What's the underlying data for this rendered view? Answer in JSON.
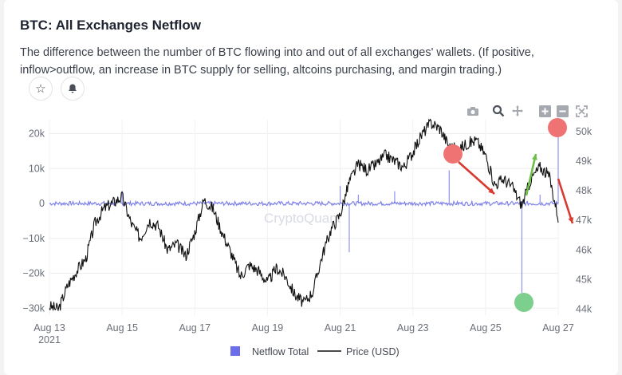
{
  "header": {
    "title": "BTC: All Exchanges Netflow",
    "description": "The difference between the number of BTC flowing into and out of all exchanges' wallets. (If positive, inflow>outflow, an increase in BTC supply for selling, altcoins purchasing, and margin trading.)"
  },
  "actions": {
    "favorite_icon": "star-icon",
    "alert_icon": "bell-icon"
  },
  "toolbar": [
    "camera-icon",
    "zoom-icon",
    "pan-icon",
    "zoom-in-icon",
    "zoom-out-icon",
    "autoscale-icon"
  ],
  "watermark": "CryptoQuant",
  "colors": {
    "netflow": "#6b6ee8",
    "price": "#111111",
    "up_arrow": "#6cbf46",
    "down_arrow": "#d93a2f",
    "red_marker": "#ef7373",
    "green_marker": "#7ccf8c"
  },
  "chart_data": {
    "type": "line",
    "title": "BTC: All Exchanges Netflow",
    "x_ticks": [
      "Aug 13",
      "Aug 15",
      "Aug 17",
      "Aug 19",
      "Aug 21",
      "Aug 23",
      "Aug 25",
      "Aug 27"
    ],
    "x_year_label": "2021",
    "y_left_ticks": [
      "20k",
      "10k",
      "0",
      "−10k",
      "−20k",
      "−30k"
    ],
    "y_left_values": [
      20000,
      10000,
      0,
      -10000,
      -20000,
      -30000
    ],
    "y_left_range": [
      -32000,
      24000
    ],
    "y_right_ticks": [
      "50k",
      "49k",
      "48k",
      "47k",
      "46k",
      "45k",
      "44k"
    ],
    "y_right_values": [
      50000,
      49000,
      48000,
      47000,
      46000,
      45000,
      44000
    ],
    "y_right_range": [
      43800,
      50400
    ],
    "legend": [
      "Netflow Total",
      "Price (USD)"
    ],
    "legend_position": "bottom",
    "grid": true,
    "series": [
      {
        "name": "Price (USD)",
        "axis": "right",
        "points": [
          [
            "Aug 13 00:00",
            44100
          ],
          [
            "Aug 13 06:00",
            44000
          ],
          [
            "Aug 13 12:00",
            44800
          ],
          [
            "Aug 13 18:00",
            45300
          ],
          [
            "Aug 14 00:00",
            45700
          ],
          [
            "Aug 14 06:00",
            46900
          ],
          [
            "Aug 14 12:00",
            47400
          ],
          [
            "Aug 14 18:00",
            47600
          ],
          [
            "Aug 15 00:00",
            47800
          ],
          [
            "Aug 15 06:00",
            46900
          ],
          [
            "Aug 15 12:00",
            46400
          ],
          [
            "Aug 15 18:00",
            47000
          ],
          [
            "Aug 16 00:00",
            46800
          ],
          [
            "Aug 16 06:00",
            46000
          ],
          [
            "Aug 16 12:00",
            46200
          ],
          [
            "Aug 16 18:00",
            45800
          ],
          [
            "Aug 17 00:00",
            46600
          ],
          [
            "Aug 17 06:00",
            47700
          ],
          [
            "Aug 17 12:00",
            47400
          ],
          [
            "Aug 17 18:00",
            46600
          ],
          [
            "Aug 18 00:00",
            45900
          ],
          [
            "Aug 18 06:00",
            45100
          ],
          [
            "Aug 18 12:00",
            45500
          ],
          [
            "Aug 18 18:00",
            45300
          ],
          [
            "Aug 19 00:00",
            44900
          ],
          [
            "Aug 19 06:00",
            45400
          ],
          [
            "Aug 19 12:00",
            45100
          ],
          [
            "Aug 19 18:00",
            44500
          ],
          [
            "Aug 20 00:00",
            44200
          ],
          [
            "Aug 20 06:00",
            44600
          ],
          [
            "Aug 20 12:00",
            45800
          ],
          [
            "Aug 20 18:00",
            46700
          ],
          [
            "Aug 21 00:00",
            47200
          ],
          [
            "Aug 21 06:00",
            48300
          ],
          [
            "Aug 21 12:00",
            48900
          ],
          [
            "Aug 21 18:00",
            48700
          ],
          [
            "Aug 22 00:00",
            48900
          ],
          [
            "Aug 22 06:00",
            49200
          ],
          [
            "Aug 22 12:00",
            49000
          ],
          [
            "Aug 22 18:00",
            48800
          ],
          [
            "Aug 23 00:00",
            49300
          ],
          [
            "Aug 23 06:00",
            49900
          ],
          [
            "Aug 23 12:00",
            50300
          ],
          [
            "Aug 23 18:00",
            50100
          ],
          [
            "Aug 24 00:00",
            49500
          ],
          [
            "Aug 24 06:00",
            49400
          ],
          [
            "Aug 24 12:00",
            49600
          ],
          [
            "Aug 24 18:00",
            49700
          ],
          [
            "Aug 25 00:00",
            49200
          ],
          [
            "Aug 25 06:00",
            48200
          ],
          [
            "Aug 25 12:00",
            48400
          ],
          [
            "Aug 25 18:00",
            48100
          ],
          [
            "Aug 26 00:00",
            47500
          ],
          [
            "Aug 26 06:00",
            48400
          ],
          [
            "Aug 26 12:00",
            48800
          ],
          [
            "Aug 26 18:00",
            48500
          ],
          [
            "Aug 27 00:00",
            47100
          ]
        ]
      },
      {
        "name": "Netflow Total",
        "axis": "left",
        "points": [
          [
            "Aug 13 00:00",
            0
          ],
          [
            "Aug 13 12:00",
            1500
          ],
          [
            "Aug 14 00:00",
            -1200
          ],
          [
            "Aug 14 12:00",
            1800
          ],
          [
            "Aug 15 00:00",
            3500
          ],
          [
            "Aug 15 12:00",
            -1500
          ],
          [
            "Aug 16 00:00",
            1200
          ],
          [
            "Aug 16 12:00",
            -1000
          ],
          [
            "Aug 17 00:00",
            1500
          ],
          [
            "Aug 17 12:00",
            -1300
          ],
          [
            "Aug 18 00:00",
            1400
          ],
          [
            "Aug 18 12:00",
            -1200
          ],
          [
            "Aug 19 00:00",
            1000
          ],
          [
            "Aug 19 12:00",
            -800
          ],
          [
            "Aug 20 00:00",
            1200
          ],
          [
            "Aug 20 12:00",
            -1600
          ],
          [
            "Aug 21 00:00",
            5000
          ],
          [
            "Aug 21 06:00",
            -14000
          ],
          [
            "Aug 21 12:00",
            2500
          ],
          [
            "Aug 22 00:00",
            -2000
          ],
          [
            "Aug 22 12:00",
            3500
          ],
          [
            "Aug 23 00:00",
            -1500
          ],
          [
            "Aug 23 12:00",
            2000
          ],
          [
            "Aug 24 00:00",
            9500
          ],
          [
            "Aug 24 12:00",
            -1200
          ],
          [
            "Aug 25 00:00",
            1500
          ],
          [
            "Aug 25 12:00",
            -1000
          ],
          [
            "Aug 26 00:00",
            -29500
          ],
          [
            "Aug 26 12:00",
            2500
          ],
          [
            "Aug 27 00:00",
            24000
          ]
        ]
      }
    ]
  }
}
